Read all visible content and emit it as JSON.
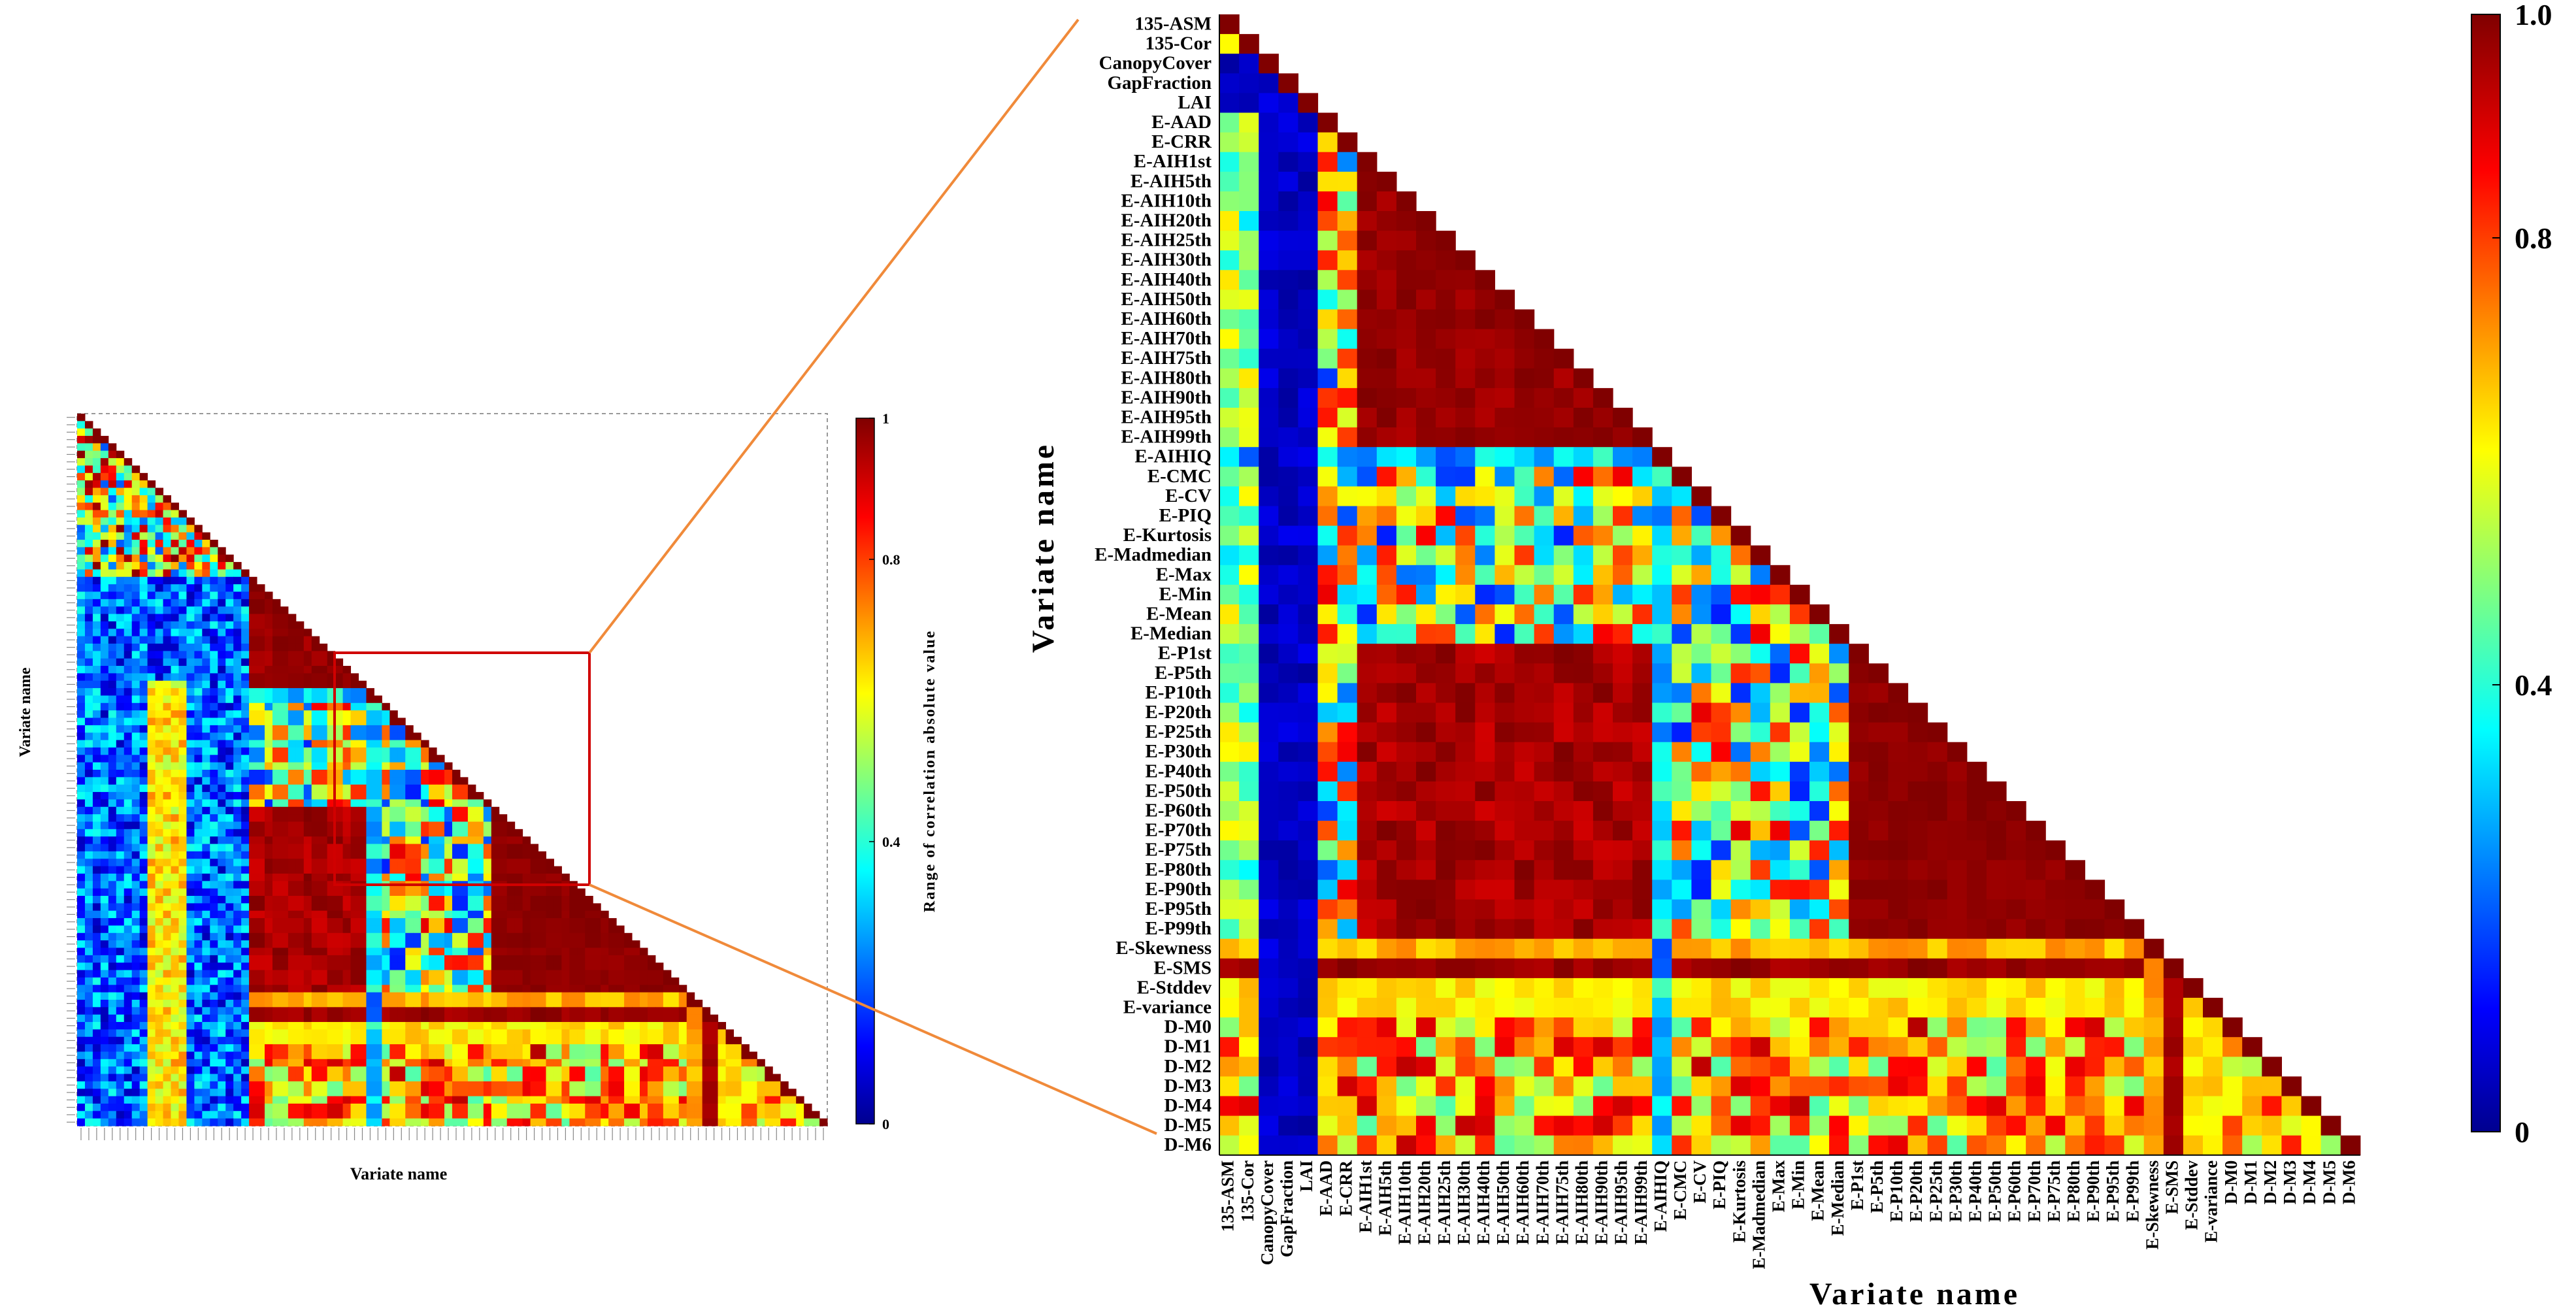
{
  "chart_data": [
    {
      "type": "heatmap",
      "panel": "overview",
      "title": "",
      "xlabel": "Variate name",
      "ylabel": "Variate name",
      "colorbar_label": "Range of correlation absolute value",
      "colorbar_ticks": [
        "0",
        "0.4",
        "0.8",
        "1"
      ],
      "colorbar_tick_values": [
        0,
        0.4,
        0.8,
        1
      ],
      "value_range": [
        0,
        1
      ],
      "colormap": "jet",
      "structure": "lower-triangular correlation matrix of all variates; diagonal = 1; zoomed sub-block highlighted by red rectangle",
      "highlight_box_color": "#d00000",
      "connector_color": "#f08a3a"
    },
    {
      "type": "heatmap",
      "panel": "zoomed",
      "title": "",
      "xlabel": "Variate name",
      "ylabel": "Variate name",
      "colorbar_ticks": [
        "0",
        "0.4",
        "0.8",
        "1.0"
      ],
      "colorbar_tick_values": [
        0,
        0.4,
        0.8,
        1.0
      ],
      "value_range": [
        0,
        1
      ],
      "colormap": "jet",
      "structure": "lower-triangular |correlation| matrix; diagonal = 1",
      "variables": [
        "135-ASM",
        "135-Cor",
        "CanopyCover",
        "GapFraction",
        "LAI",
        "E-AAD",
        "E-CRR",
        "E-AIH1st",
        "E-AIH5th",
        "E-AIH10th",
        "E-AIH20th",
        "E-AIH25th",
        "E-AIH30th",
        "E-AIH40th",
        "E-AIH50th",
        "E-AIH60th",
        "E-AIH70th",
        "E-AIH75th",
        "E-AIH80th",
        "E-AIH90th",
        "E-AIH95th",
        "E-AIH99th",
        "E-AIHIQ",
        "E-CMC",
        "E-CV",
        "E-PIQ",
        "E-Kurtosis",
        "E-Madmedian",
        "E-Max",
        "E-Min",
        "E-Mean",
        "E-Median",
        "E-P1st",
        "E-P5th",
        "E-P10th",
        "E-P20th",
        "E-P25th",
        "E-P30th",
        "E-P40th",
        "E-P50th",
        "E-P60th",
        "E-P70th",
        "E-P75th",
        "E-P80th",
        "E-P90th",
        "E-P95th",
        "E-P99th",
        "E-Skewness",
        "E-SMS",
        "E-Stddev",
        "E-variance",
        "D-M0",
        "D-M1",
        "D-M2",
        "D-M3",
        "D-M4",
        "D-M5",
        "D-M6"
      ],
      "groups": {
        "texture": [
          "135-ASM",
          "135-Cor"
        ],
        "canopy": [
          "CanopyCover",
          "GapFraction",
          "LAI"
        ],
        "aih_percentiles": [
          "E-AIH1st",
          "E-AIH5th",
          "E-AIH10th",
          "E-AIH20th",
          "E-AIH25th",
          "E-AIH30th",
          "E-AIH40th",
          "E-AIH50th",
          "E-AIH60th",
          "E-AIH70th",
          "E-AIH75th",
          "E-AIH80th",
          "E-AIH90th",
          "E-AIH95th",
          "E-AIH99th"
        ],
        "height_percentiles": [
          "E-P1st",
          "E-P5th",
          "E-P10th",
          "E-P20th",
          "E-P25th",
          "E-P30th",
          "E-P40th",
          "E-P50th",
          "E-P60th",
          "E-P70th",
          "E-P75th",
          "E-P80th",
          "E-P90th",
          "E-P95th",
          "E-P99th"
        ],
        "density": [
          "D-M0",
          "D-M1",
          "D-M2",
          "D-M3",
          "D-M4",
          "D-M5",
          "D-M6"
        ]
      },
      "approx_block_values": {
        "diagonal": 1.0,
        "within_aih_percentiles": 0.95,
        "within_height_percentiles": 0.97,
        "aih_vs_height_percentiles": 0.92,
        "canopy_vs_all": 0.03,
        "texture_vs_all": 0.5,
        "E-AIHIQ_row": 0.2,
        "E-Skewness_vs_height_percentiles": 0.75,
        "E-SMS_vs_height_percentiles": 0.95,
        "E-Stddev_vs_height_percentiles": 0.65,
        "density_vs_height_percentiles": 0.7
      }
    }
  ]
}
